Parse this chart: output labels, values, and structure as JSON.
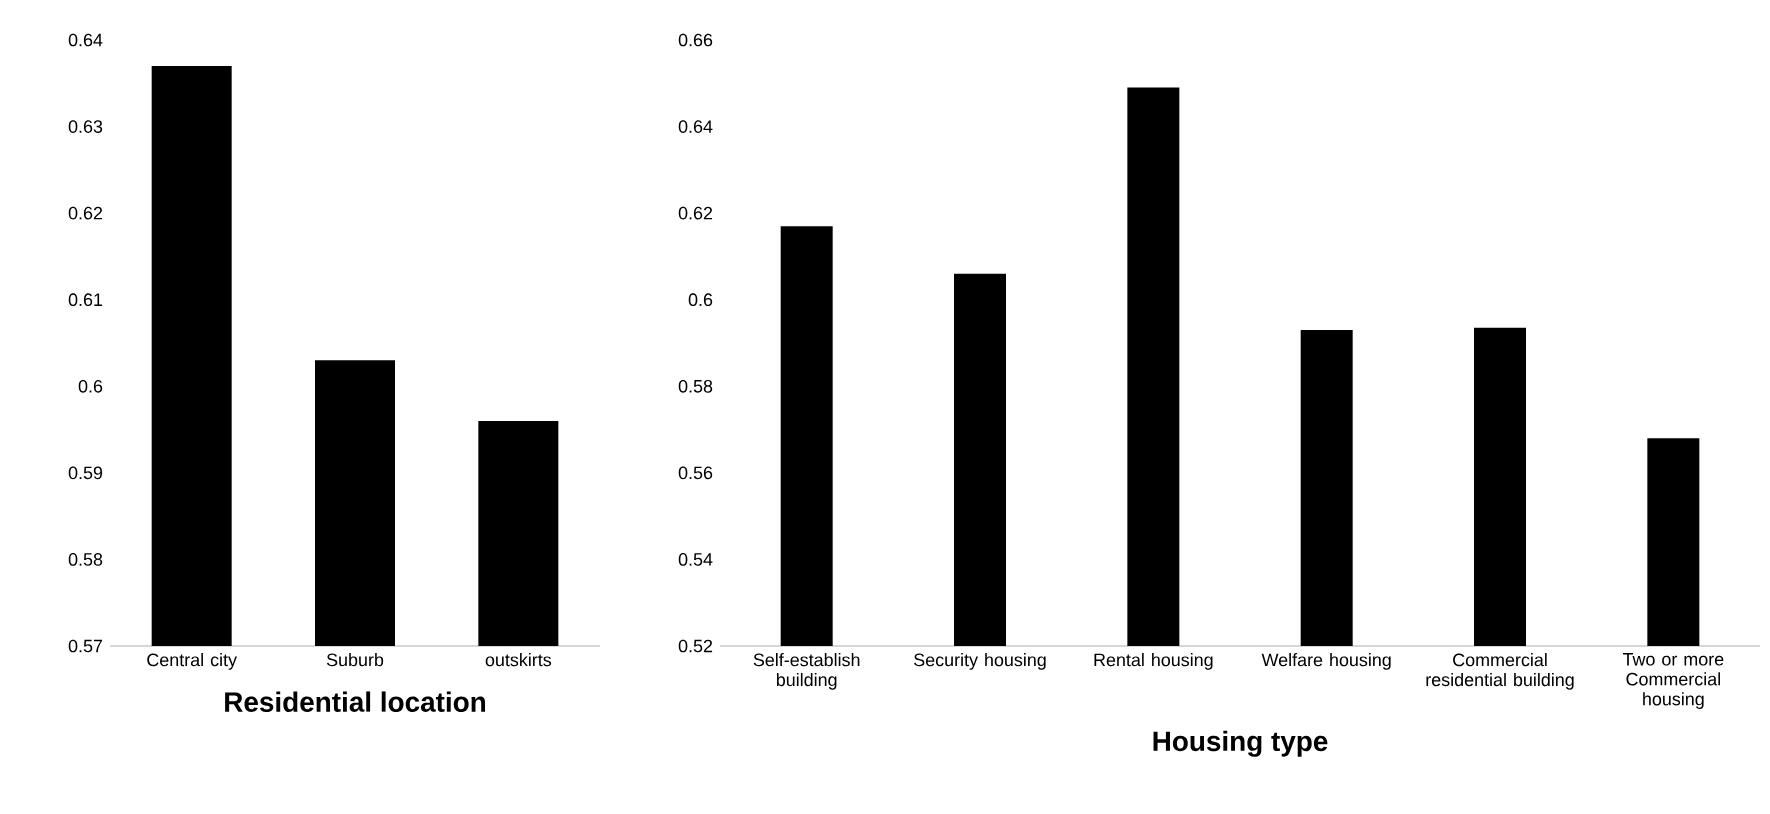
{
  "chart_data": [
    {
      "type": "bar",
      "xlabel": "Residential location",
      "categories": [
        "Central city",
        "Suburb",
        "outskirts"
      ],
      "values": [
        0.637,
        0.603,
        0.596
      ],
      "color": "#000000",
      "ylim": [
        0.57,
        0.64
      ],
      "yticks": [
        0.57,
        0.58,
        0.59,
        0.6,
        0.61,
        0.62,
        0.63,
        0.64
      ]
    },
    {
      "type": "bar",
      "xlabel": "Housing type",
      "categories": [
        "Self-establish building",
        "Security housing",
        "Rental housing",
        "Welfare housing",
        "Commercial residential building",
        "Two or more Commercial housing"
      ],
      "values": [
        0.617,
        0.606,
        0.649,
        0.593,
        0.5935,
        0.568
      ],
      "color": "#000000",
      "ylim": [
        0.52,
        0.66
      ],
      "yticks": [
        0.52,
        0.54,
        0.56,
        0.58,
        0.6,
        0.62,
        0.64,
        0.66
      ]
    }
  ]
}
